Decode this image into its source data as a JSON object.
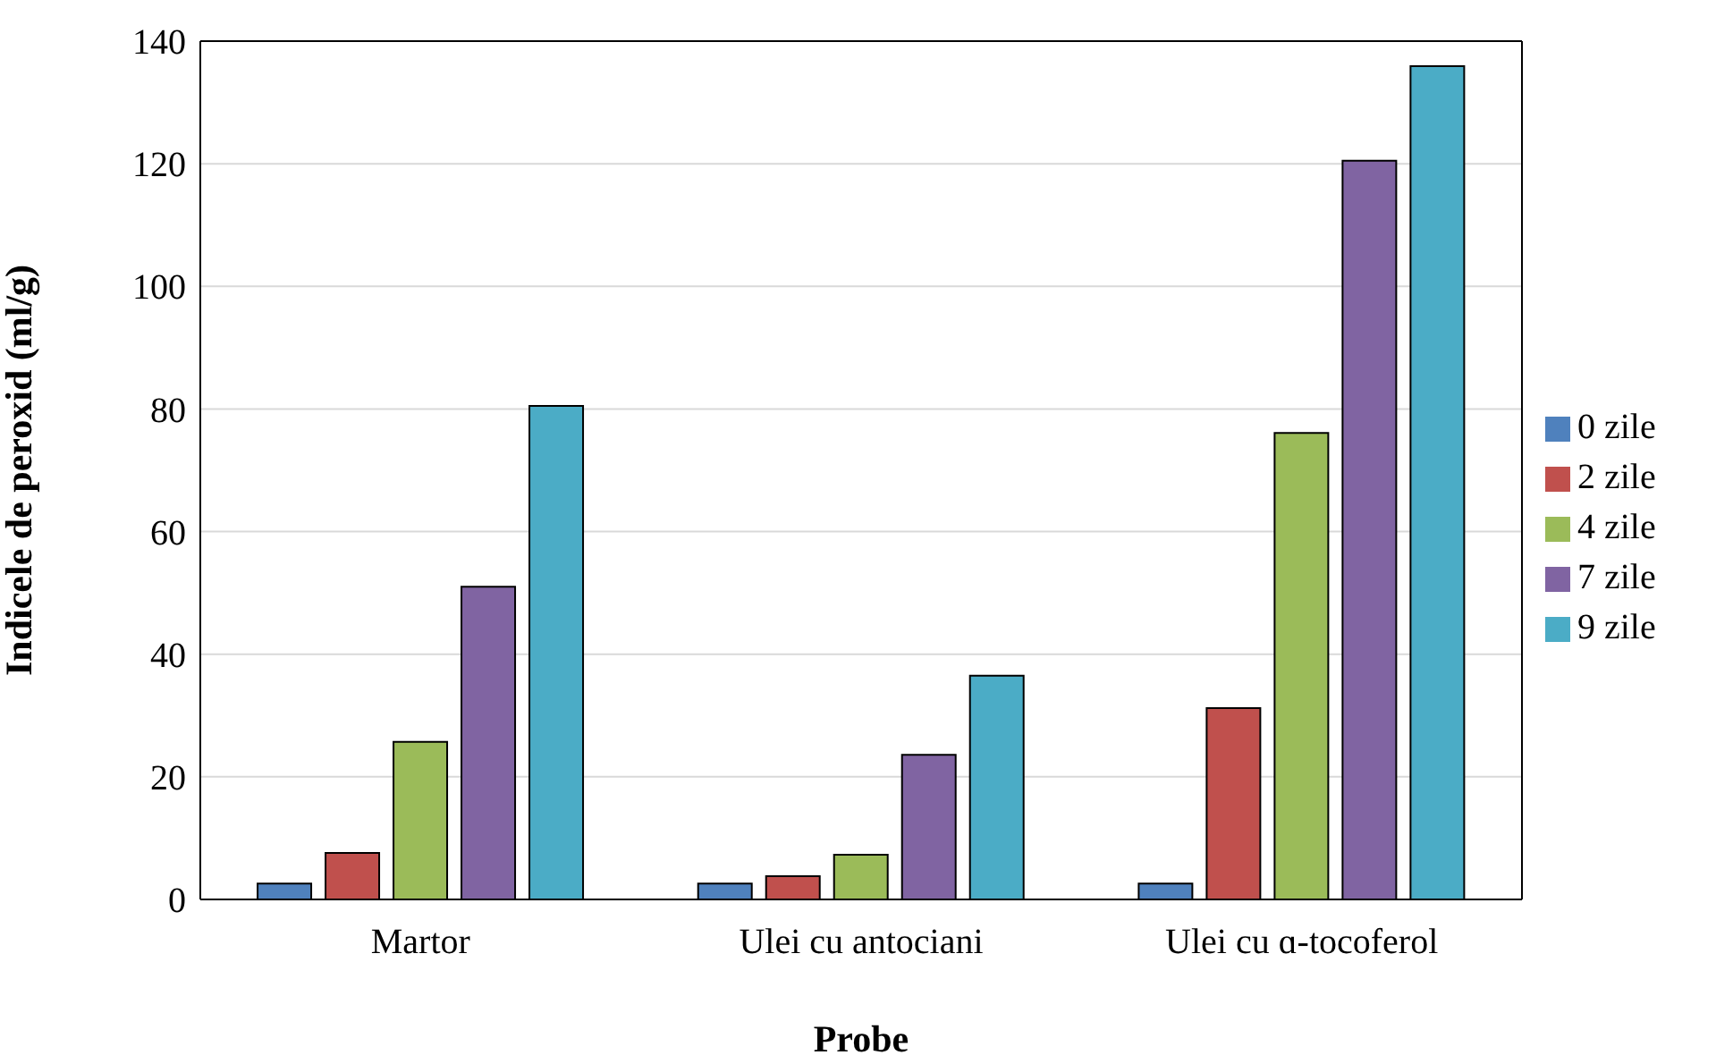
{
  "chart_data": {
    "type": "bar",
    "xlabel": "Probe",
    "ylabel": "Indicele de peroxid (ml/g)",
    "categories": [
      "Martor",
      "Ulei cu antociani",
      "Ulei cu ɑ-tocoferol"
    ],
    "series": [
      {
        "name": "0 zile",
        "color": "#4f81bd",
        "values": [
          2.6,
          2.6,
          2.6
        ]
      },
      {
        "name": "2 zile",
        "color": "#c0504d",
        "values": [
          7.6,
          3.8,
          31.2
        ]
      },
      {
        "name": "4 zile",
        "color": "#9bbb59",
        "values": [
          25.7,
          7.3,
          76.1
        ]
      },
      {
        "name": "7 zile",
        "color": "#8064a2",
        "values": [
          51,
          23.6,
          120.5
        ]
      },
      {
        "name": "9 zile",
        "color": "#4bacc6",
        "values": [
          80.5,
          36.5,
          135.9
        ]
      }
    ],
    "ylim": [
      0,
      140
    ],
    "yticks": [
      0,
      20,
      40,
      60,
      80,
      100,
      120,
      140
    ],
    "grid": "y",
    "legend": "right"
  }
}
